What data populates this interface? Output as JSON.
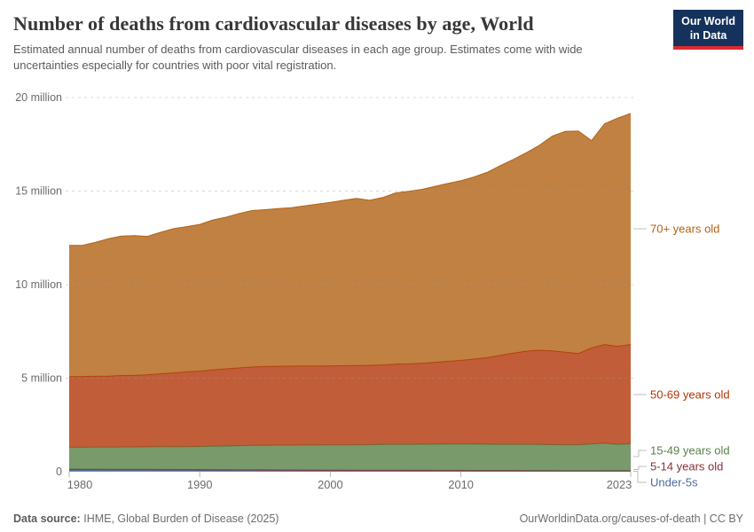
{
  "header": {
    "title": "Number of deaths from cardiovascular diseases by age, World",
    "subtitle": "Estimated annual number of deaths from cardiovascular diseases in each age group. Estimates come with wide uncertainties especially for countries with poor vital registration.",
    "logo_line1": "Our World",
    "logo_line2": "in Data",
    "logo_bg": "#14325C",
    "logo_accent": "#DC2A2F"
  },
  "footer": {
    "source_label": "Data source:",
    "source_value": "IHME, Global Burden of Disease (2025)",
    "right": "OurWorldinData.org/causes-of-death | CC BY"
  },
  "chart_data": {
    "type": "area",
    "stacked": true,
    "unit": "deaths (millions)",
    "ylim": [
      0,
      20
    ],
    "grid": "horizontal-dashed",
    "legend_position": "right",
    "fill_opacity": 0.8,
    "yticks": [
      0,
      5,
      10,
      15,
      20
    ],
    "ytick_labels": [
      "0",
      "5 million",
      "10 million",
      "15 million",
      "20 million"
    ],
    "xticks": [
      1980,
      1990,
      2000,
      2010,
      2023
    ],
    "years": [
      1980,
      1981,
      1982,
      1983,
      1984,
      1985,
      1986,
      1987,
      1988,
      1989,
      1990,
      1991,
      1992,
      1993,
      1994,
      1995,
      1996,
      1997,
      1998,
      1999,
      2000,
      2001,
      2002,
      2003,
      2004,
      2005,
      2006,
      2007,
      2008,
      2009,
      2010,
      2011,
      2012,
      2013,
      2014,
      2015,
      2016,
      2017,
      2018,
      2019,
      2020,
      2021,
      2022,
      2023
    ],
    "series": [
      {
        "id": "under-5s",
        "name": "Under-5s",
        "color": "#4C6A9C",
        "values": [
          0.09,
          0.089,
          0.088,
          0.086,
          0.084,
          0.082,
          0.08,
          0.078,
          0.076,
          0.074,
          0.072,
          0.07,
          0.068,
          0.066,
          0.064,
          0.062,
          0.06,
          0.058,
          0.056,
          0.054,
          0.052,
          0.05,
          0.049,
          0.048,
          0.047,
          0.046,
          0.045,
          0.044,
          0.043,
          0.042,
          0.041,
          0.04,
          0.039,
          0.038,
          0.037,
          0.036,
          0.035,
          0.034,
          0.033,
          0.032,
          0.031,
          0.03,
          0.03,
          0.029
        ]
      },
      {
        "id": "5-14",
        "name": "5-14 years old",
        "color": "#883039",
        "values": [
          0.05,
          0.05,
          0.049,
          0.049,
          0.048,
          0.048,
          0.047,
          0.047,
          0.046,
          0.046,
          0.045,
          0.044,
          0.044,
          0.043,
          0.042,
          0.042,
          0.041,
          0.04,
          0.04,
          0.039,
          0.038,
          0.038,
          0.037,
          0.037,
          0.036,
          0.036,
          0.035,
          0.035,
          0.034,
          0.034,
          0.033,
          0.033,
          0.032,
          0.032,
          0.032,
          0.031,
          0.031,
          0.031,
          0.03,
          0.03,
          0.03,
          0.03,
          0.03,
          0.03
        ]
      },
      {
        "id": "15-49",
        "name": "15-49 years old",
        "color": "#578145",
        "values": [
          1.17,
          1.17,
          1.18,
          1.18,
          1.19,
          1.19,
          1.2,
          1.21,
          1.21,
          1.22,
          1.23,
          1.25,
          1.26,
          1.28,
          1.3,
          1.31,
          1.32,
          1.32,
          1.33,
          1.33,
          1.34,
          1.35,
          1.35,
          1.36,
          1.37,
          1.38,
          1.38,
          1.39,
          1.39,
          1.4,
          1.4,
          1.4,
          1.4,
          1.39,
          1.39,
          1.39,
          1.39,
          1.38,
          1.38,
          1.38,
          1.42,
          1.46,
          1.4,
          1.44
        ]
      },
      {
        "id": "50-69",
        "name": "50-69 years old",
        "color": "#B13507",
        "values": [
          3.77,
          3.78,
          3.79,
          3.8,
          3.82,
          3.83,
          3.86,
          3.9,
          3.95,
          4.0,
          4.03,
          4.08,
          4.13,
          4.16,
          4.19,
          4.21,
          4.22,
          4.23,
          4.23,
          4.23,
          4.23,
          4.23,
          4.24,
          4.24,
          4.26,
          4.29,
          4.31,
          4.33,
          4.38,
          4.43,
          4.48,
          4.55,
          4.63,
          4.76,
          4.88,
          4.99,
          5.04,
          5.02,
          4.95,
          4.88,
          5.14,
          5.28,
          5.24,
          5.3
        ]
      },
      {
        "id": "70-plus",
        "name": "70+ years old",
        "color": "#B16214",
        "values": [
          7.02,
          7.01,
          7.15,
          7.34,
          7.45,
          7.47,
          7.39,
          7.56,
          7.71,
          7.76,
          7.84,
          8.01,
          8.1,
          8.25,
          8.36,
          8.38,
          8.42,
          8.46,
          8.55,
          8.65,
          8.74,
          8.84,
          8.93,
          8.82,
          8.94,
          9.15,
          9.22,
          9.29,
          9.4,
          9.5,
          9.6,
          9.73,
          9.9,
          10.13,
          10.35,
          10.6,
          10.95,
          11.48,
          11.8,
          11.88,
          11.08,
          11.8,
          12.2,
          12.35
        ]
      }
    ]
  }
}
